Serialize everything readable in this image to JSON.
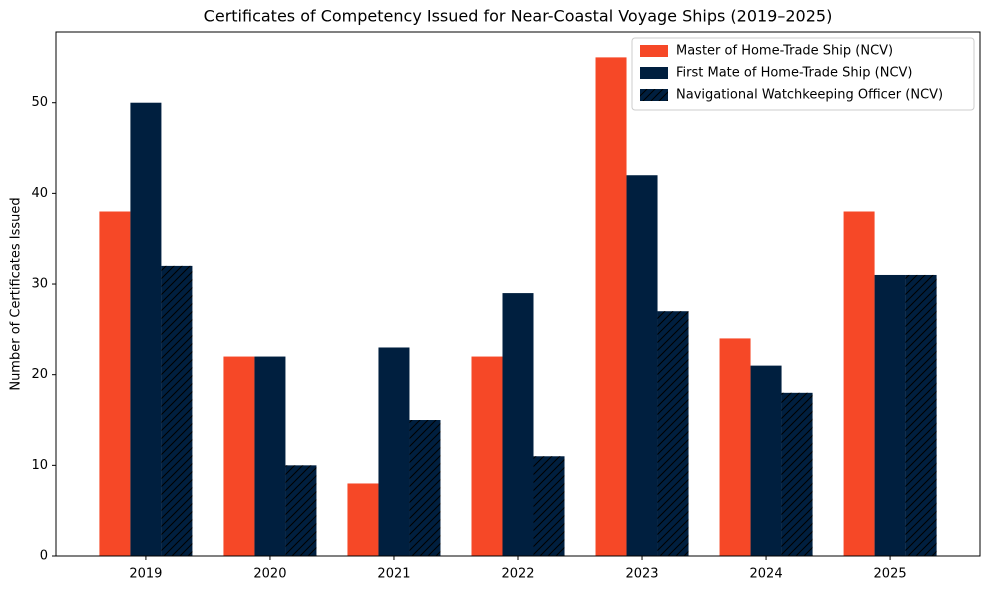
{
  "chart_data": {
    "type": "bar",
    "title": "Certificates of Competency Issued for Near-Coastal Voyage Ships (2019–2025)",
    "y_label": "Number of Certificates Issued",
    "categories": [
      "2019",
      "2020",
      "2021",
      "2022",
      "2023",
      "2024",
      "2025"
    ],
    "series": [
      {
        "name": "Master of Home-Trade Ship (NCV)",
        "color": "#f64827",
        "values": [
          38,
          22,
          8,
          22,
          55,
          24,
          38
        ]
      },
      {
        "name": "First Mate of Home-Trade Ship (NCV)",
        "color": "#001f3f",
        "values": [
          50,
          22,
          23,
          29,
          42,
          21,
          31
        ]
      },
      {
        "name": "Navigational Watchkeeping Officer (NCV)",
        "color": "#001f3f",
        "hatch": "//",
        "values": [
          32,
          10,
          15,
          11,
          27,
          18,
          31
        ]
      }
    ],
    "ylim": [
      0,
      57.8
    ],
    "yticks": [
      0,
      10,
      20,
      30,
      40,
      50
    ],
    "grid": false,
    "legend": "upper right"
  }
}
